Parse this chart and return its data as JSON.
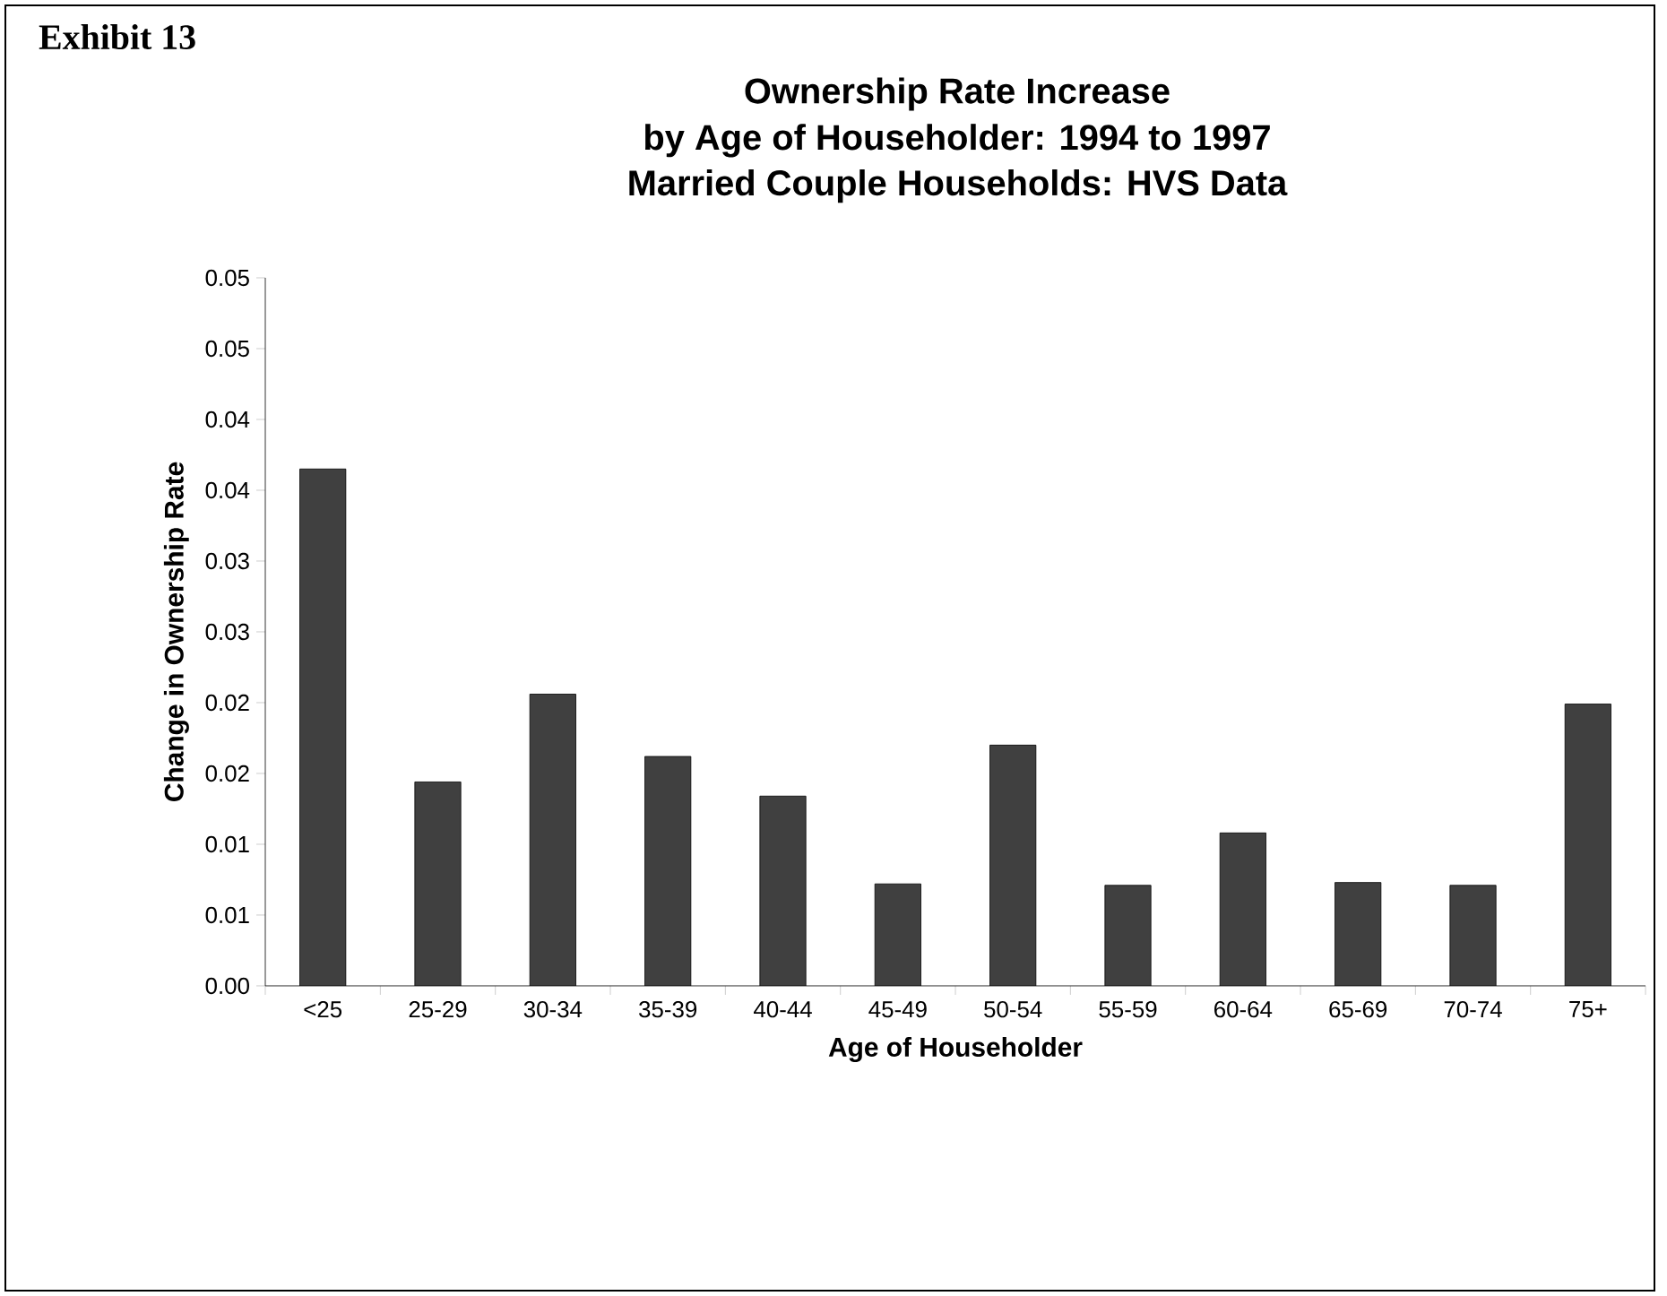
{
  "chart_data": {
    "type": "bar",
    "title": "Ownership Rate Increase by Age of Householder: 1994 to 1997",
    "subtitle": "Married Couple Households: HVS Data",
    "annotations": [
      "Exhibit 13"
    ],
    "xlabel": "Age of Householder",
    "ylabel": "Change in Ownership Rate",
    "categories": [
      "<25",
      "25-29",
      "30-34",
      "35-39",
      "40-44",
      "45-49",
      "50-54",
      "55-59",
      "60-64",
      "65-69",
      "70-74",
      "75+"
    ],
    "values": [
      0.0365,
      0.0144,
      0.0206,
      0.0162,
      0.0134,
      0.0072,
      0.017,
      0.0071,
      0.0108,
      0.0073,
      0.0071,
      0.0199
    ],
    "color": "#404040",
    "ylim": [
      0,
      0.05
    ],
    "yticks": [
      {
        "value": 0,
        "label": "0.00"
      },
      {
        "value": 0.005,
        "label": "0.01"
      },
      {
        "value": 0.01,
        "label": "0.01"
      },
      {
        "value": 0.015,
        "label": "0.02"
      },
      {
        "value": 0.02,
        "label": "0.02"
      },
      {
        "value": 0.025,
        "label": "0.03"
      },
      {
        "value": 0.03,
        "label": "0.03"
      },
      {
        "value": 0.035,
        "label": "0.04"
      },
      {
        "value": 0.04,
        "label": "0.04"
      },
      {
        "value": 0.045,
        "label": "0.05"
      },
      {
        "value": 0.05,
        "label": "0.05"
      }
    ],
    "grid": false
  }
}
